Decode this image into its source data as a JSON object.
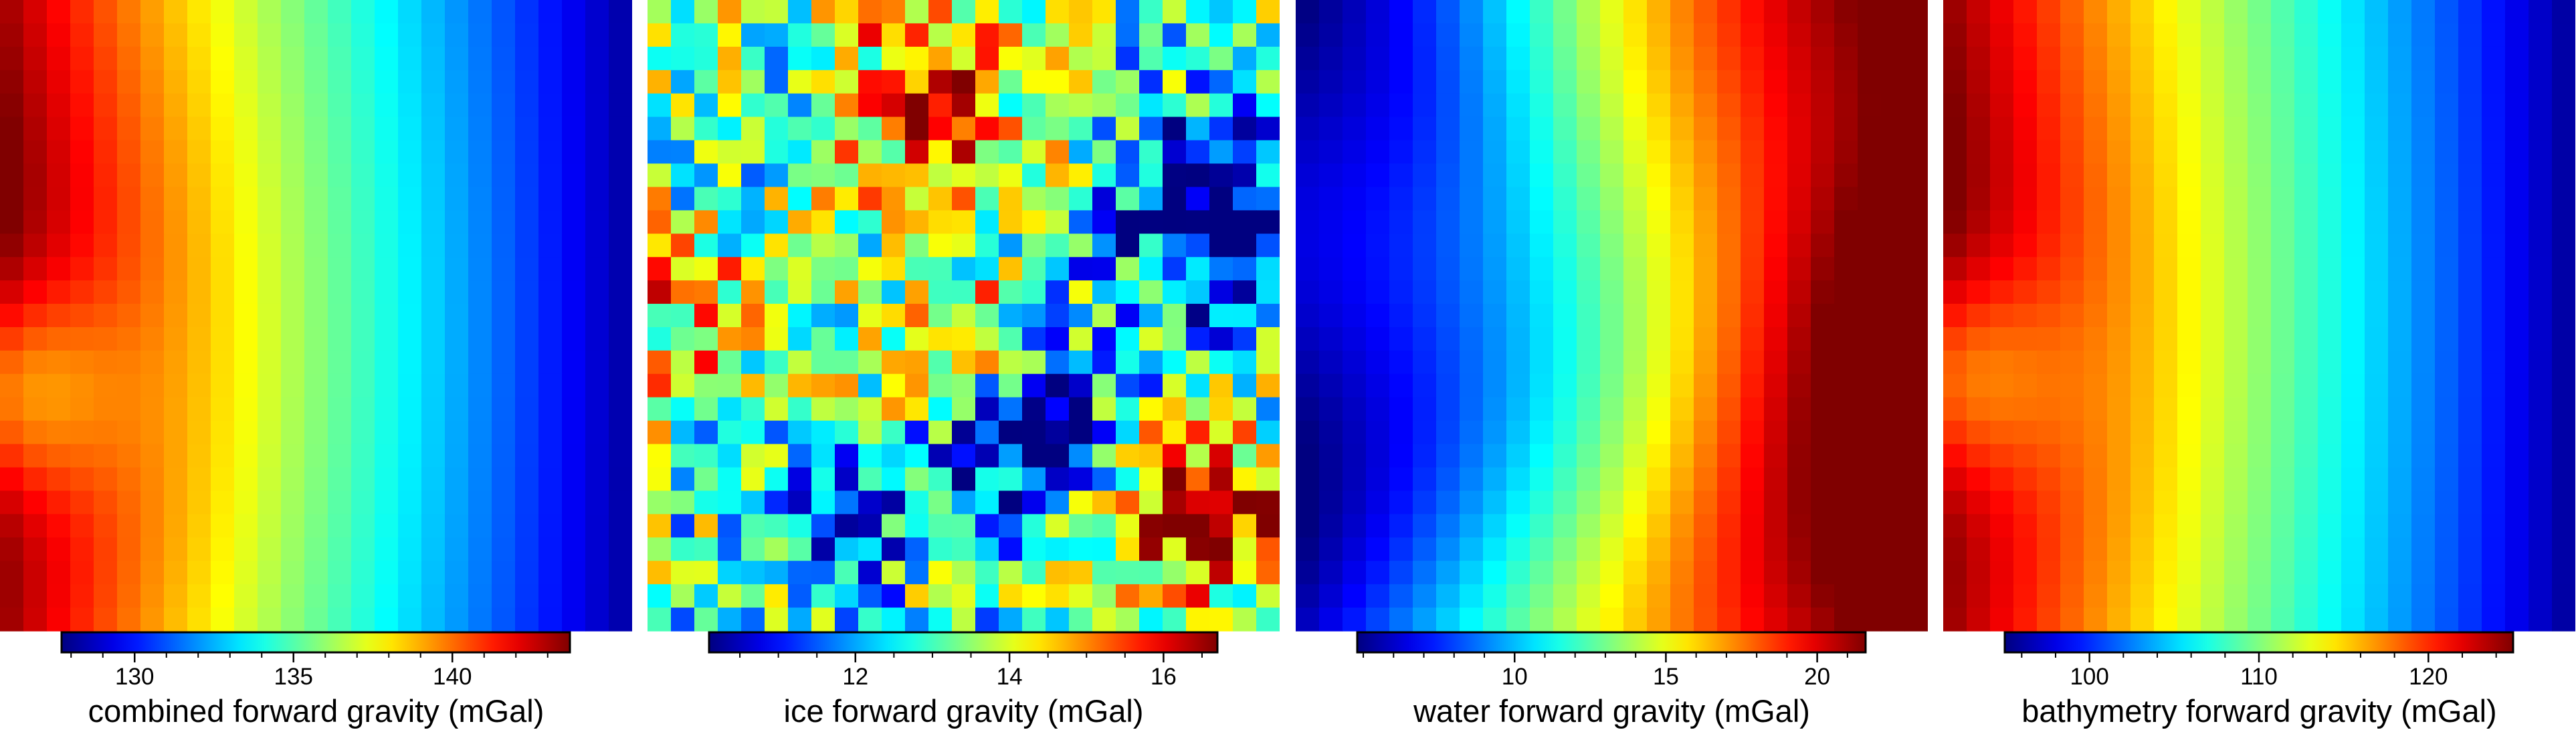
{
  "panels": [
    {
      "label": "combined forward gravity (mGal)",
      "vmin": 127.7,
      "vmax": 143.7,
      "ticks": [
        130,
        135,
        140
      ],
      "minor_step": 1
    },
    {
      "label": "ice forward gravity (mGal)",
      "vmin": 10.1,
      "vmax": 16.7,
      "ticks": [
        12,
        14,
        16
      ],
      "minor_step": 0.5
    },
    {
      "label": "water forward gravity (mGal)",
      "vmin": 4.8,
      "vmax": 21.6,
      "ticks": [
        10,
        15,
        20
      ],
      "minor_step": 1
    },
    {
      "label": "bathymetry forward gravity (mGal)",
      "vmin": 95.0,
      "vmax": 125.0,
      "ticks": [
        100,
        110,
        120
      ],
      "minor_step": 2
    }
  ],
  "chart_data": [
    {
      "type": "heatmap",
      "colorbar_label": "combined forward gravity (mGal)",
      "range": [
        127.7,
        143.7
      ],
      "colorbar_ticks": [
        130,
        135,
        140
      ],
      "colormap": "jet",
      "grid": "approx 27 x 27 cells, high (~141-143) along left/west edge, decreasing to ~129 on right/east edge"
    },
    {
      "type": "heatmap",
      "colorbar_label": "ice forward gravity (mGal)",
      "range": [
        10.1,
        16.7
      ],
      "colorbar_ticks": [
        12,
        14,
        16
      ],
      "colormap": "jet",
      "grid": "approx 27 x 27 cells, patchy; highs (~16.5) at lower-right and center, lows (~10.5) on right and scattered"
    },
    {
      "type": "heatmap",
      "colorbar_label": "water forward gravity (mGal)",
      "range": [
        4.8,
        21.6
      ],
      "colorbar_ticks": [
        10,
        15,
        20
      ],
      "colormap": "jet",
      "grid": "approx 27 x 27 cells, low (~5-8) on left/west, high (~19-21) on right/east"
    },
    {
      "type": "heatmap",
      "colorbar_label": "bathymetry forward gravity (mGal)",
      "range": [
        95.0,
        125.0
      ],
      "colorbar_ticks": [
        100,
        110,
        120
      ],
      "colormap": "jet",
      "grid": "approx 27 x 27 cells, high (~122) along left/west edge, decreasing to ~96 on right/east edge"
    }
  ]
}
